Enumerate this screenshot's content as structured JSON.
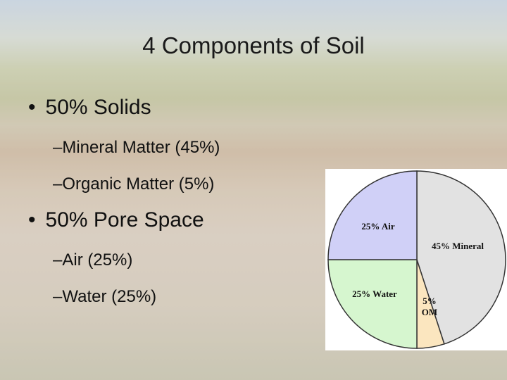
{
  "title": "4 Components of Soil",
  "bullets": [
    {
      "text": "50% Solids",
      "items": [
        "Mineral Matter (45%)",
        "Organic Matter (5%)"
      ]
    },
    {
      "text": "50% Pore Space",
      "items": [
        "Air (25%)",
        "Water (25%)"
      ]
    }
  ],
  "chart_data": {
    "type": "pie",
    "values": [
      45,
      5,
      25,
      25
    ],
    "value_labels": [
      "45% Mineral",
      "5% OM",
      "25% Water",
      "25% Air"
    ],
    "colors": [
      "#e2e2e2",
      "#fbe6bf",
      "#d6f6cf",
      "#d0d0f7"
    ]
  }
}
